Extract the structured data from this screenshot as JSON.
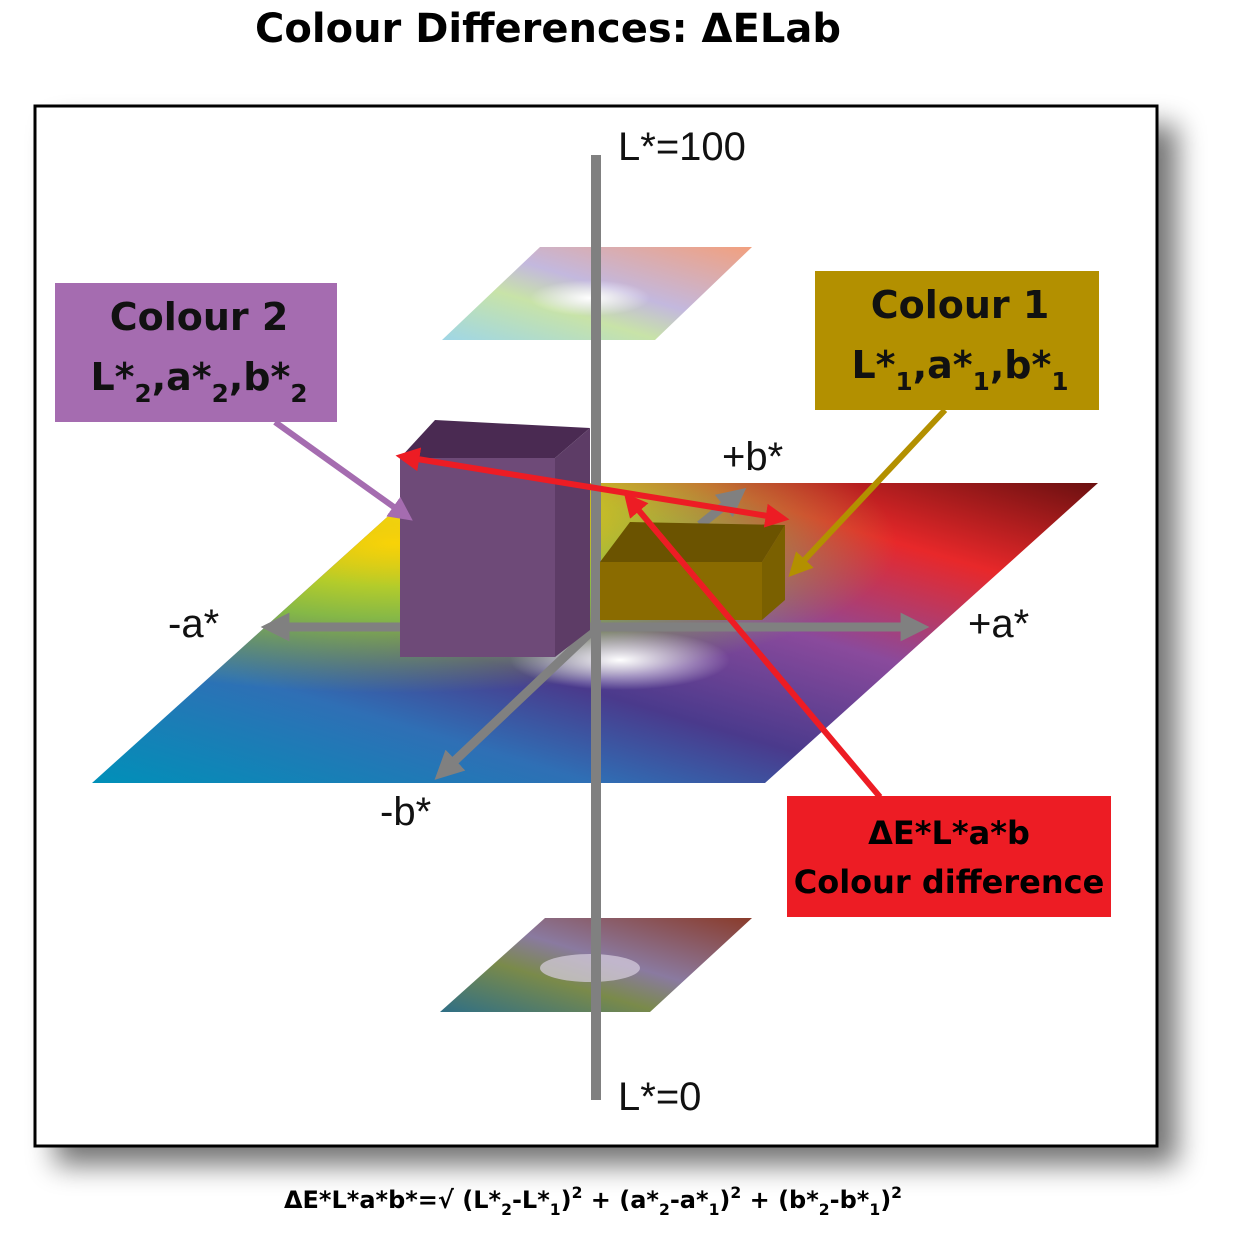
{
  "title": "Colour Differences: ΔELab",
  "axes": {
    "l_top": "L*=100",
    "l_bottom": "L*=0",
    "plus_a": "+a*",
    "minus_a": "-a*",
    "plus_b": "+b*",
    "minus_b": "-b*"
  },
  "colour_2": {
    "label": "Colour 2",
    "coords": [
      {
        "text": "L*"
      },
      {
        "sub": "2"
      },
      {
        "text": ",a*"
      },
      {
        "sub": "2"
      },
      {
        "text": ",b*"
      },
      {
        "sub": "2"
      }
    ]
  },
  "colour_1": {
    "label": "Colour 1",
    "coords": [
      {
        "text": "L*"
      },
      {
        "sub": "1"
      },
      {
        "text": ",a*"
      },
      {
        "sub": "1"
      },
      {
        "text": ",b*"
      },
      {
        "sub": "1"
      }
    ]
  },
  "difference": {
    "line_1": "ΔE*L*a*b",
    "line_2": "Colour difference"
  },
  "formula": [
    {
      "text": "ΔE*L*a*b*=√ (L*"
    },
    {
      "sub": "2"
    },
    {
      "text": "-L*"
    },
    {
      "sub": "1"
    },
    {
      "text": ")"
    },
    {
      "sup": "2"
    },
    {
      "text": " + (a*"
    },
    {
      "sub": "2"
    },
    {
      "text": "-a*"
    },
    {
      "sub": "1"
    },
    {
      "text": ")"
    },
    {
      "sup": "2"
    },
    {
      "text": " + (b*"
    },
    {
      "sub": "2"
    },
    {
      "text": "-b*"
    },
    {
      "sub": "1"
    },
    {
      "text": ")"
    },
    {
      "sup": "2"
    }
  ]
}
